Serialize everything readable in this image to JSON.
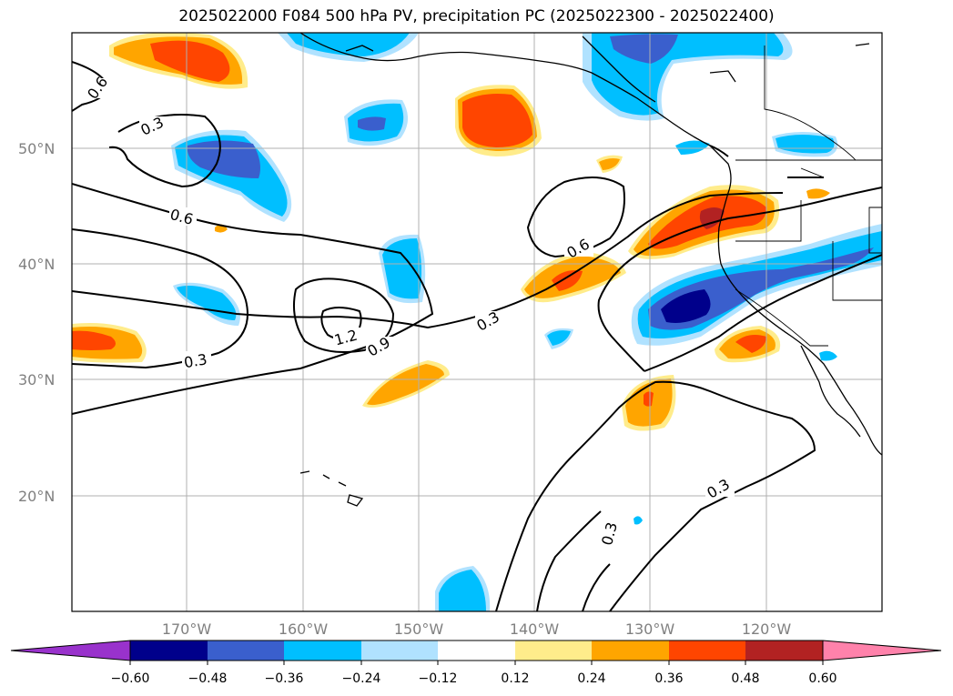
{
  "title": "2025022000 F084 500 hPa PV, precipitation PC (2025022300 - 2025022400)",
  "lat_labels": [
    "50°N",
    "40°N",
    "30°N",
    "20°N"
  ],
  "lon_labels": [
    "170°W",
    "160°W",
    "150°W",
    "140°W",
    "130°W",
    "120°W"
  ],
  "contour_labels": [
    "0.6",
    "0.3",
    "0.6",
    "0.3",
    "1.2",
    "0.9",
    "0.3",
    "0.6",
    "0.3",
    "0.3"
  ],
  "colorbar": {
    "ticks": [
      "−0.60",
      "−0.48",
      "−0.36",
      "−0.24",
      "−0.12",
      "0.12",
      "0.24",
      "0.36",
      "0.48",
      "0.60"
    ],
    "colors": [
      "#9932cc",
      "#00008b",
      "#3a5fcd",
      "#00bfff",
      "#b0e2ff",
      "#ffffff",
      "#ffec8b",
      "#ffa500",
      "#ff4500",
      "#b22222",
      "#ff82ab"
    ]
  },
  "colors": {
    "blue_dark": "#00008b",
    "blue_mid": "#3a5fcd",
    "blue": "#00bfff",
    "blue_light": "#b0e2ff",
    "yellow": "#ffec8b",
    "orange": "#ffa500",
    "red_orange": "#ff4500",
    "red": "#b22222"
  }
}
